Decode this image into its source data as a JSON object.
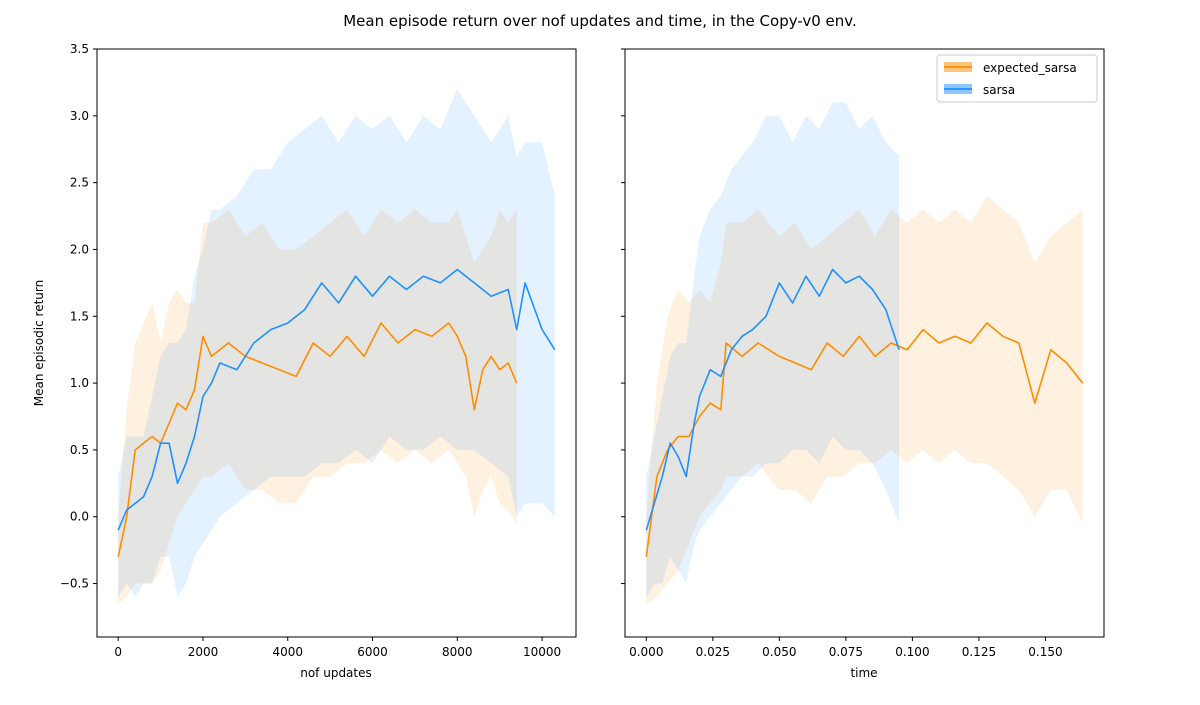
{
  "title": "Mean episode return over nof updates and time, in the Copy-v0 env.",
  "colors": {
    "expected_sarsa": "#ff8c00",
    "sarsa": "#1e90ff"
  },
  "legend": {
    "placement": "upper right of right panel",
    "entries": [
      "expected_sarsa",
      "sarsa"
    ]
  },
  "chart_data": [
    {
      "type": "line",
      "xlabel": "nof updates",
      "ylabel": "Mean episodic return",
      "xlim": [
        -500,
        10800
      ],
      "ylim": [
        -0.9,
        3.5
      ],
      "xticks": [
        0,
        2000,
        4000,
        6000,
        8000,
        10000
      ],
      "xtick_labels": [
        "0",
        "2000",
        "4000",
        "6000",
        "8000",
        "10000"
      ],
      "yticks": [
        -0.5,
        0.0,
        0.5,
        1.0,
        1.5,
        2.0,
        2.5,
        3.0,
        3.5
      ],
      "ytick_labels": [
        "−0.5",
        "0.0",
        "0.5",
        "1.0",
        "1.5",
        "2.0",
        "2.5",
        "3.0",
        "3.5"
      ],
      "grid": false,
      "series": [
        {
          "name": "expected_sarsa",
          "x": [
            0,
            200,
            400,
            800,
            1000,
            1200,
            1400,
            1600,
            1800,
            2000,
            2200,
            2600,
            3000,
            3400,
            3800,
            4200,
            4600,
            5000,
            5400,
            5800,
            6200,
            6600,
            7000,
            7400,
            7800,
            8000,
            8200,
            8400,
            8600,
            8800,
            9000,
            9200,
            9400
          ],
          "y": [
            -0.3,
            0.0,
            0.5,
            0.6,
            0.55,
            0.7,
            0.85,
            0.8,
            0.95,
            1.35,
            1.2,
            1.3,
            1.2,
            1.15,
            1.1,
            1.05,
            1.3,
            1.2,
            1.35,
            1.2,
            1.45,
            1.3,
            1.4,
            1.35,
            1.45,
            1.35,
            1.2,
            0.8,
            1.1,
            1.2,
            1.1,
            1.15,
            1.0
          ],
          "upper": [
            0.0,
            0.8,
            1.3,
            1.6,
            1.3,
            1.6,
            1.7,
            1.6,
            1.6,
            2.2,
            2.2,
            2.3,
            2.1,
            2.2,
            2.0,
            2.0,
            2.1,
            2.2,
            2.3,
            2.1,
            2.3,
            2.2,
            2.3,
            2.2,
            2.2,
            2.3,
            2.1,
            1.9,
            2.0,
            2.1,
            2.3,
            2.2,
            2.3
          ],
          "lower": [
            -0.65,
            -0.6,
            -0.5,
            -0.5,
            -0.4,
            -0.2,
            0.0,
            0.1,
            0.2,
            0.3,
            0.3,
            0.4,
            0.2,
            0.2,
            0.1,
            0.1,
            0.3,
            0.3,
            0.4,
            0.4,
            0.5,
            0.4,
            0.5,
            0.4,
            0.5,
            0.4,
            0.3,
            0.0,
            0.2,
            0.3,
            0.1,
            0.05,
            -0.05
          ]
        },
        {
          "name": "sarsa",
          "x": [
            0,
            200,
            400,
            600,
            800,
            1000,
            1200,
            1400,
            1600,
            1800,
            2000,
            2200,
            2400,
            2800,
            3200,
            3600,
            4000,
            4400,
            4800,
            5200,
            5600,
            6000,
            6400,
            6800,
            7200,
            7600,
            8000,
            8400,
            8800,
            9200,
            9400,
            9600,
            10000,
            10300
          ],
          "y": [
            -0.1,
            0.05,
            0.1,
            0.15,
            0.3,
            0.55,
            0.55,
            0.25,
            0.4,
            0.6,
            0.9,
            1.0,
            1.15,
            1.1,
            1.3,
            1.4,
            1.45,
            1.55,
            1.75,
            1.6,
            1.8,
            1.65,
            1.8,
            1.7,
            1.8,
            1.75,
            1.85,
            1.75,
            1.65,
            1.7,
            1.4,
            1.75,
            1.4,
            1.25
          ],
          "upper": [
            0.3,
            0.6,
            0.6,
            0.6,
            0.9,
            1.2,
            1.3,
            1.3,
            1.4,
            1.8,
            2.0,
            2.3,
            2.3,
            2.4,
            2.6,
            2.6,
            2.8,
            2.9,
            3.0,
            2.8,
            3.0,
            2.9,
            3.0,
            2.8,
            3.0,
            2.9,
            3.2,
            3.0,
            2.8,
            3.0,
            2.7,
            2.8,
            2.8,
            2.4
          ],
          "lower": [
            -0.6,
            -0.5,
            -0.6,
            -0.5,
            -0.5,
            -0.3,
            -0.3,
            -0.6,
            -0.5,
            -0.3,
            -0.2,
            -0.1,
            0.0,
            0.1,
            0.2,
            0.3,
            0.3,
            0.3,
            0.4,
            0.4,
            0.5,
            0.4,
            0.6,
            0.5,
            0.5,
            0.6,
            0.5,
            0.5,
            0.4,
            0.3,
            0.0,
            0.1,
            0.1,
            0.0
          ]
        }
      ]
    },
    {
      "type": "line",
      "xlabel": "time",
      "ylabel": "",
      "xlim": [
        -0.008,
        0.172
      ],
      "ylim": [
        -0.9,
        3.5
      ],
      "xticks": [
        0.0,
        0.025,
        0.05,
        0.075,
        0.1,
        0.125,
        0.15
      ],
      "xtick_labels": [
        "0.000",
        "0.025",
        "0.050",
        "0.075",
        "0.100",
        "0.125",
        "0.150"
      ],
      "yticks": [
        -0.5,
        0.0,
        0.5,
        1.0,
        1.5,
        2.0,
        2.5,
        3.0,
        3.5
      ],
      "grid": false,
      "series": [
        {
          "name": "expected_sarsa",
          "x": [
            0.0,
            0.004,
            0.008,
            0.012,
            0.016,
            0.02,
            0.024,
            0.028,
            0.03,
            0.036,
            0.042,
            0.05,
            0.056,
            0.062,
            0.068,
            0.074,
            0.08,
            0.086,
            0.092,
            0.098,
            0.104,
            0.11,
            0.116,
            0.122,
            0.128,
            0.134,
            0.14,
            0.146,
            0.152,
            0.158,
            0.164
          ],
          "y": [
            -0.3,
            0.3,
            0.5,
            0.6,
            0.6,
            0.75,
            0.85,
            0.8,
            1.3,
            1.2,
            1.3,
            1.2,
            1.15,
            1.1,
            1.3,
            1.2,
            1.35,
            1.2,
            1.3,
            1.25,
            1.4,
            1.3,
            1.35,
            1.3,
            1.45,
            1.35,
            1.3,
            0.85,
            1.25,
            1.15,
            1.0
          ],
          "upper": [
            0.0,
            1.0,
            1.5,
            1.7,
            1.6,
            1.7,
            1.6,
            1.9,
            2.2,
            2.2,
            2.3,
            2.1,
            2.2,
            2.0,
            2.1,
            2.2,
            2.3,
            2.1,
            2.3,
            2.2,
            2.3,
            2.2,
            2.3,
            2.2,
            2.4,
            2.3,
            2.2,
            1.9,
            2.1,
            2.2,
            2.3
          ],
          "lower": [
            -0.65,
            -0.6,
            -0.5,
            -0.4,
            -0.2,
            0.0,
            0.1,
            0.2,
            0.3,
            0.3,
            0.4,
            0.2,
            0.2,
            0.1,
            0.3,
            0.3,
            0.4,
            0.4,
            0.5,
            0.4,
            0.5,
            0.4,
            0.5,
            0.4,
            0.4,
            0.3,
            0.2,
            0.0,
            0.2,
            0.2,
            -0.05
          ]
        },
        {
          "name": "sarsa",
          "x": [
            0.0,
            0.003,
            0.006,
            0.009,
            0.012,
            0.015,
            0.018,
            0.02,
            0.024,
            0.028,
            0.032,
            0.036,
            0.04,
            0.045,
            0.05,
            0.055,
            0.06,
            0.065,
            0.07,
            0.075,
            0.08,
            0.085,
            0.09,
            0.095
          ],
          "y": [
            -0.1,
            0.1,
            0.3,
            0.55,
            0.45,
            0.3,
            0.7,
            0.9,
            1.1,
            1.05,
            1.25,
            1.35,
            1.4,
            1.5,
            1.75,
            1.6,
            1.8,
            1.65,
            1.85,
            1.75,
            1.8,
            1.7,
            1.55,
            1.25
          ],
          "upper": [
            0.3,
            0.6,
            0.9,
            1.2,
            1.3,
            1.3,
            1.8,
            2.1,
            2.3,
            2.4,
            2.6,
            2.7,
            2.8,
            3.0,
            3.0,
            2.8,
            3.0,
            2.9,
            3.1,
            3.1,
            2.9,
            3.0,
            2.8,
            2.7
          ],
          "lower": [
            -0.6,
            -0.5,
            -0.5,
            -0.3,
            -0.4,
            -0.5,
            -0.2,
            -0.1,
            0.0,
            0.1,
            0.2,
            0.3,
            0.3,
            0.4,
            0.4,
            0.5,
            0.5,
            0.4,
            0.6,
            0.5,
            0.5,
            0.4,
            0.2,
            -0.05
          ]
        }
      ]
    }
  ]
}
